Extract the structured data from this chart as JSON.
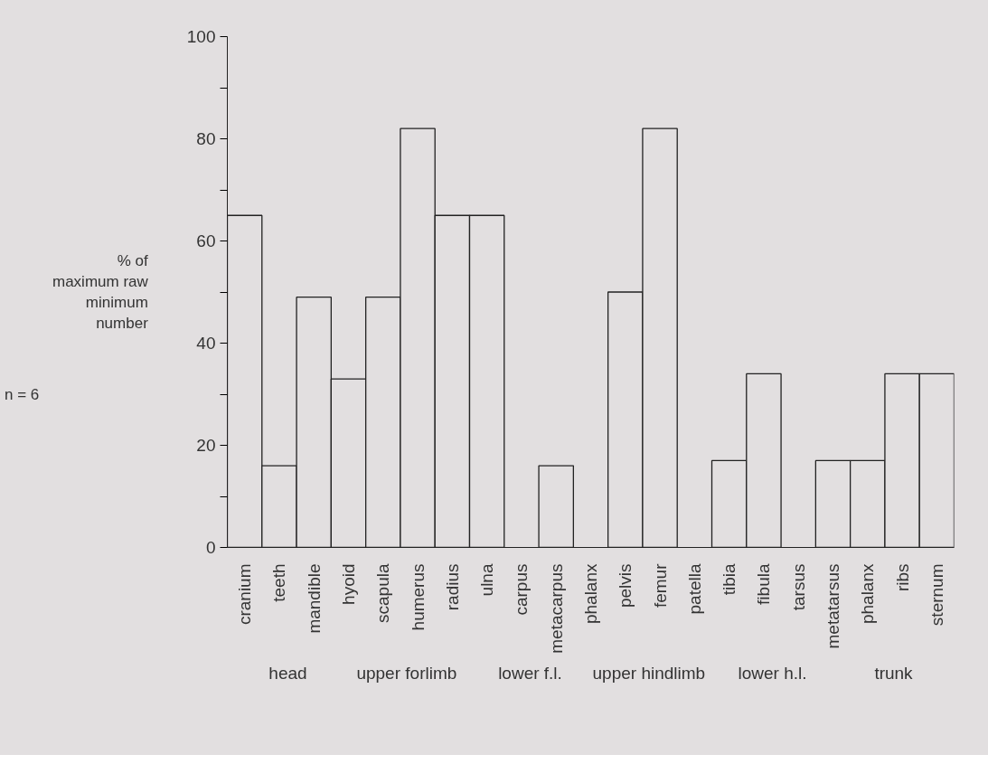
{
  "chart_data": {
    "type": "bar",
    "ylabel": "% of maximum raw minimum number",
    "categories": [
      "cranium",
      "teeth",
      "mandible",
      "hyoid",
      "scapula",
      "humerus",
      "radius",
      "ulna",
      "carpus",
      "metacarpus",
      "phalanx",
      "pelvis",
      "femur",
      "patella",
      "tibia",
      "fibula",
      "tarsus",
      "metatarsus",
      "phalanx",
      "ribs",
      "sternum"
    ],
    "values": [
      65,
      16,
      49,
      33,
      49,
      82,
      65,
      65,
      0,
      16,
      0,
      50,
      82,
      0,
      17,
      34,
      0,
      17,
      17,
      34,
      34
    ],
    "color": "#e2dfe0",
    "ylim": [
      0,
      100
    ],
    "yticks": [
      0,
      {
        "value": 10,
        "label": null
      },
      20,
      {
        "value": 30,
        "label": null
      },
      40,
      {
        "value": 50,
        "label": null
      },
      60,
      {
        "value": 70,
        "label": null
      },
      80,
      {
        "value": 90,
        "label": null
      },
      100
    ],
    "grid": false,
    "annotations": [
      "head",
      "upper  forlimb",
      "lower f.l.",
      "upper  hindlimb",
      "lower h.l.",
      "trunk",
      "n = 6"
    ]
  }
}
